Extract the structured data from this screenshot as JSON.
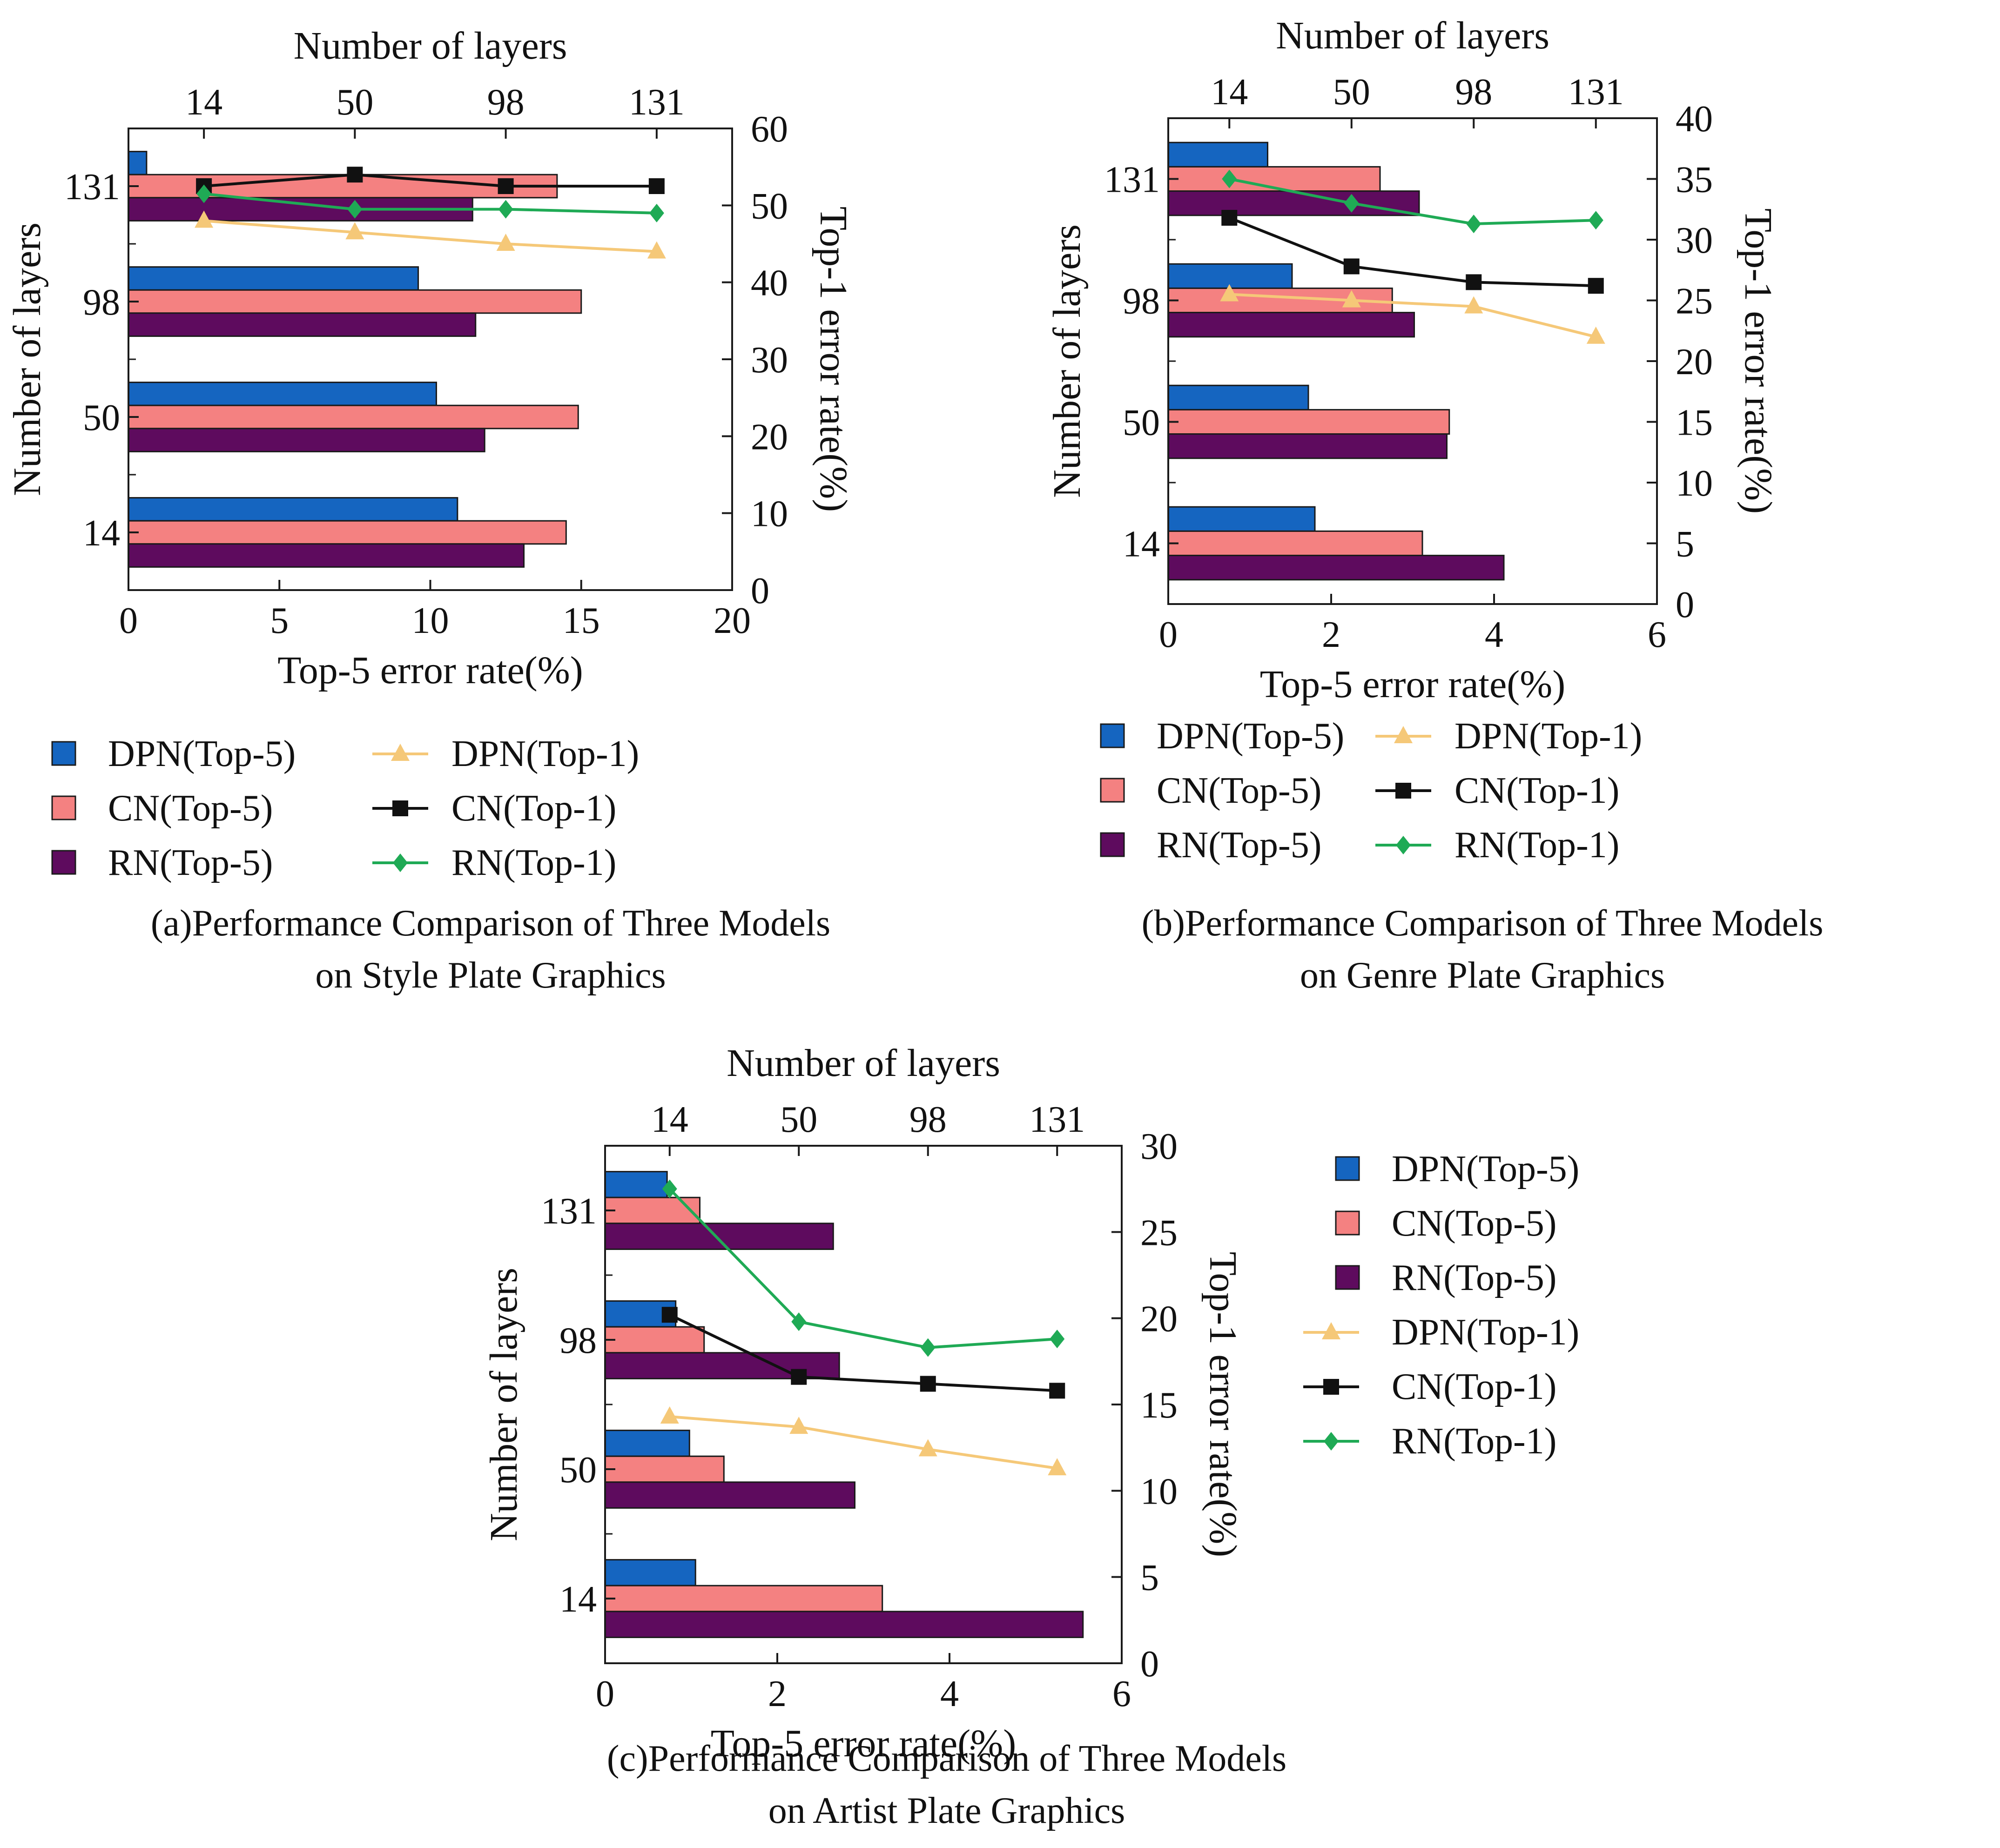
{
  "charts": [
    {
      "id": "a",
      "caption_line1": "(a)Performance Comparison of Three Models",
      "caption_line2": "on Style Plate Graphics",
      "chart_data": {
        "type": "bar",
        "orientation": "horizontal",
        "categories": [
          "14",
          "50",
          "98",
          "131"
        ],
        "xlabel": "Top-5 error rate(%)",
        "ylabel": "Number of layers",
        "top_xlabel": "Number of layers",
        "right_ylabel": "Top-1 error rate(%)",
        "xlim": [
          0,
          20
        ],
        "x_ticks": [
          "0",
          "5",
          "10",
          "15",
          "20"
        ],
        "y2lim": [
          0,
          60
        ],
        "y2_ticks": [
          "0",
          "10",
          "20",
          "30",
          "40",
          "50",
          "60"
        ],
        "top_ticks": [
          "14",
          "50",
          "98",
          "131"
        ],
        "bar_series": [
          {
            "name": "DPN(Top-5)",
            "color": "#1565c0",
            "values": [
              10.9,
              10.2,
              9.6,
              0.6
            ]
          },
          {
            "name": "CN(Top-5)",
            "color": "#f48181",
            "values": [
              14.5,
              14.9,
              15.0,
              14.2
            ]
          },
          {
            "name": "RN(Top-5)",
            "color": "#5e0b5e",
            "values": [
              13.1,
              11.8,
              11.5,
              11.4
            ]
          }
        ],
        "line_series": [
          {
            "name": "DPN(Top-1)",
            "color": "#f5c878",
            "marker": "triangle",
            "values": [
              48,
              46.5,
              45,
              44
            ]
          },
          {
            "name": "CN(Top-1)",
            "color": "#111111",
            "marker": "square",
            "values": [
              52.5,
              54,
              52.5,
              52.5
            ]
          },
          {
            "name": "RN(Top-1)",
            "color": "#1faa55",
            "marker": "diamond",
            "values": [
              51.5,
              49.5,
              49.5,
              49
            ]
          }
        ],
        "legend_position": "bottom"
      }
    },
    {
      "id": "b",
      "caption_line1": "(b)Performance Comparison of Three Models",
      "caption_line2": "on Genre Plate Graphics",
      "chart_data": {
        "type": "bar",
        "orientation": "horizontal",
        "categories": [
          "14",
          "50",
          "98",
          "131"
        ],
        "xlabel": "Top-5 error rate(%)",
        "ylabel": "Number of layers",
        "top_xlabel": "Number of layers",
        "right_ylabel": "Top-1 error rate(%)",
        "xlim": [
          0,
          6
        ],
        "x_ticks": [
          "0",
          "2",
          "4",
          "6"
        ],
        "y2lim": [
          0,
          40
        ],
        "y2_ticks": [
          "0",
          "5",
          "10",
          "15",
          "20",
          "25",
          "30",
          "35",
          "40"
        ],
        "top_ticks": [
          "14",
          "50",
          "98",
          "131"
        ],
        "bar_series": [
          {
            "name": "DPN(Top-5)",
            "color": "#1565c0",
            "values": [
              1.8,
              1.72,
              1.52,
              1.22
            ]
          },
          {
            "name": "CN(Top-5)",
            "color": "#f48181",
            "values": [
              3.12,
              3.45,
              2.75,
              2.6
            ]
          },
          {
            "name": "RN(Top-5)",
            "color": "#5e0b5e",
            "values": [
              4.12,
              3.42,
              3.02,
              3.08
            ]
          }
        ],
        "line_series": [
          {
            "name": "DPN(Top-1)",
            "color": "#f5c878",
            "marker": "triangle",
            "values": [
              25.5,
              25,
              24.5,
              22
            ]
          },
          {
            "name": "CN(Top-1)",
            "color": "#111111",
            "marker": "square",
            "values": [
              31.8,
              27.8,
              26.5,
              26.2
            ]
          },
          {
            "name": "RN(Top-1)",
            "color": "#1faa55",
            "marker": "diamond",
            "values": [
              35,
              33,
              31.3,
              31.6
            ]
          }
        ],
        "legend_position": "bottom"
      }
    },
    {
      "id": "c",
      "caption_line1": "(c)Performance Comparison of Three Models",
      "caption_line2": "on Artist Plate Graphics",
      "chart_data": {
        "type": "bar",
        "orientation": "horizontal",
        "categories": [
          "14",
          "50",
          "98",
          "131"
        ],
        "xlabel": "Top-5 error rate(%)",
        "ylabel": "Number of layers",
        "top_xlabel": "Number of layers",
        "right_ylabel": "Top-1 error rate(%)",
        "xlim": [
          0,
          6
        ],
        "x_ticks": [
          "0",
          "2",
          "4",
          "6"
        ],
        "y2lim": [
          0,
          30
        ],
        "y2_ticks": [
          "0",
          "5",
          "10",
          "15",
          "20",
          "25",
          "30"
        ],
        "top_ticks": [
          "14",
          "50",
          "98",
          "131"
        ],
        "bar_series": [
          {
            "name": "DPN(Top-5)",
            "color": "#1565c0",
            "values": [
              1.05,
              0.98,
              0.82,
              0.72
            ]
          },
          {
            "name": "CN(Top-5)",
            "color": "#f48181",
            "values": [
              3.22,
              1.38,
              1.15,
              1.1
            ]
          },
          {
            "name": "RN(Top-5)",
            "color": "#5e0b5e",
            "values": [
              5.55,
              2.9,
              2.72,
              2.65
            ]
          }
        ],
        "line_series": [
          {
            "name": "DPN(Top-1)",
            "color": "#f5c878",
            "marker": "triangle",
            "values": [
              14.3,
              13.7,
              12.4,
              11.3
            ]
          },
          {
            "name": "CN(Top-1)",
            "color": "#111111",
            "marker": "square",
            "values": [
              20.2,
              16.6,
              16.2,
              15.8
            ]
          },
          {
            "name": "RN(Top-1)",
            "color": "#1faa55",
            "marker": "diamond",
            "values": [
              27.5,
              19.8,
              18.3,
              18.8
            ]
          }
        ],
        "legend_position": "right"
      }
    }
  ]
}
